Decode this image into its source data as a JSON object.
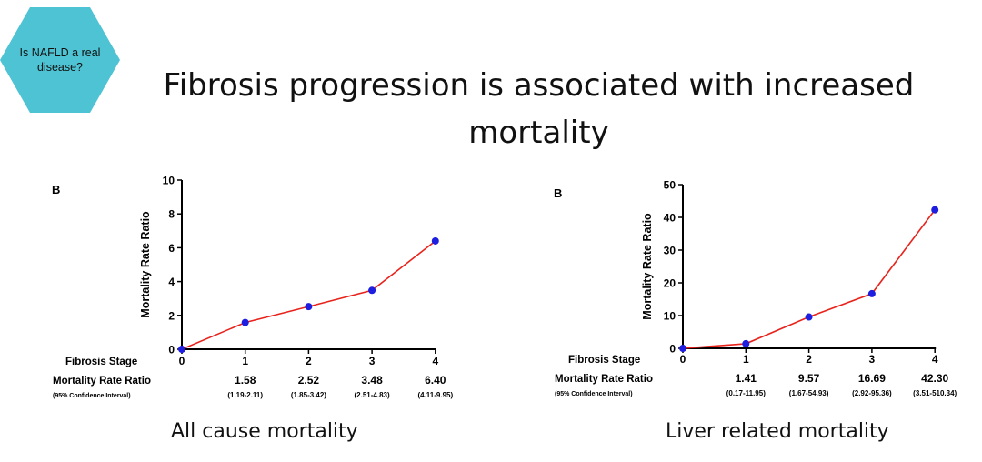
{
  "badge": {
    "text": "Is NAFLD a real disease?"
  },
  "slide_title": "Fibrosis progression is associated with increased mortality",
  "chart_data": [
    {
      "type": "line",
      "panel_label": "B",
      "x": [
        0,
        1,
        2,
        3,
        4
      ],
      "values": [
        0,
        1.58,
        2.52,
        3.48,
        6.4
      ],
      "ylabel": "Mortality  Rate Ratio",
      "ylim": [
        0,
        10
      ],
      "yticks": [
        "0",
        "2",
        "4",
        "6",
        "8",
        "10"
      ],
      "xticks": [
        "0",
        "1",
        "2",
        "3",
        "4"
      ],
      "row_label_stage": "Fibrosis Stage",
      "row_label_ratio": "Mortality  Rate Ratio",
      "row_label_ci": "(95% Confidence  Interval)",
      "ratio_labels": [
        "1.58",
        "2.52",
        "3.48",
        "6.40"
      ],
      "ci_labels": [
        "(1.19-2.11)",
        "(1.85-3.42)",
        "(2.51-4.83)",
        "(4.11-9.95)"
      ],
      "caption": "All cause mortality",
      "line_color": "#e8231c",
      "marker_color": "#1d1ee0"
    },
    {
      "type": "line",
      "panel_label": "B",
      "x": [
        0,
        1,
        2,
        3,
        4
      ],
      "values": [
        0,
        1.41,
        9.57,
        16.69,
        42.3
      ],
      "ylabel": "Mortality  Rate Ratio",
      "ylim": [
        0,
        50
      ],
      "yticks": [
        "0",
        "10",
        "20",
        "30",
        "40",
        "50"
      ],
      "xticks": [
        "0",
        "1",
        "2",
        "3",
        "4"
      ],
      "row_label_stage": "Fibrosis Stage",
      "row_label_ratio": "Mortality  Rate Ratio",
      "row_label_ci": "(95% Confidence  Interval)",
      "ratio_labels": [
        "1.41",
        "9.57",
        "16.69",
        "42.30"
      ],
      "ci_labels": [
        "(0.17-11.95)",
        "(1.67-54.93)",
        "(2.92-95.36)",
        "(3.51-510.34)"
      ],
      "caption": "Liver related mortality",
      "line_color": "#e8231c",
      "marker_color": "#1d1ee0"
    }
  ]
}
